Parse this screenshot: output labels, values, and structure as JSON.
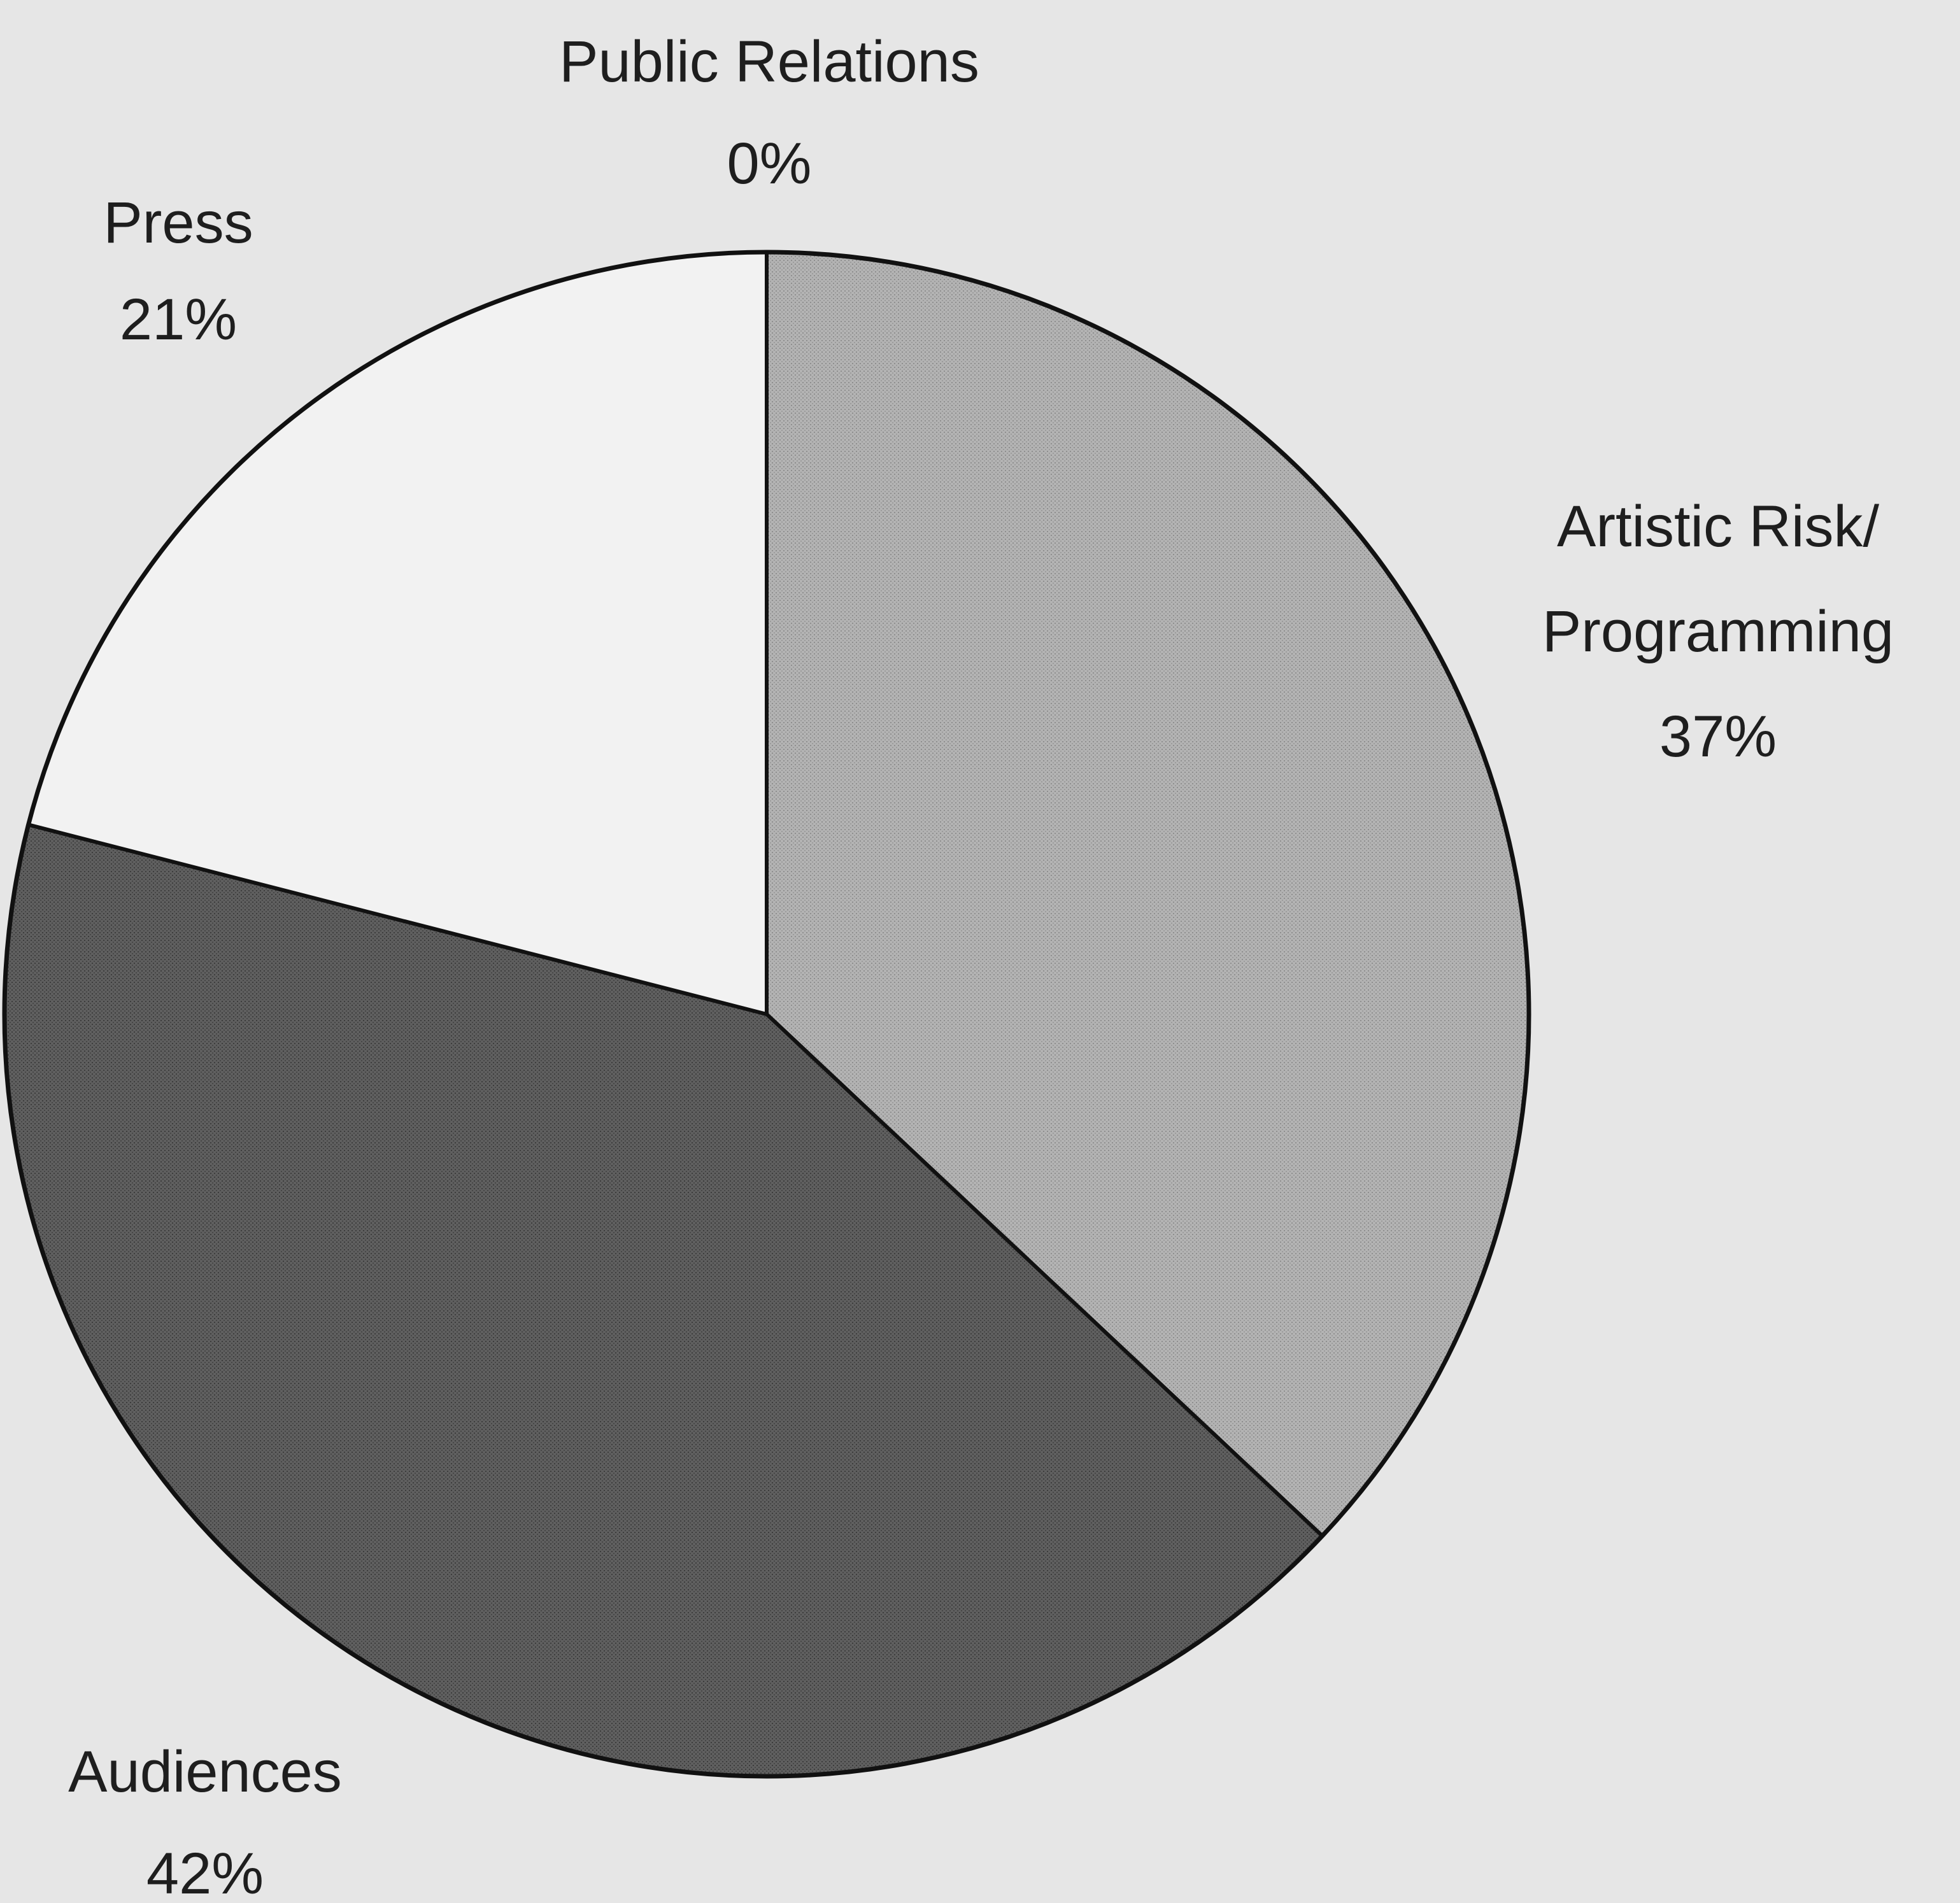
{
  "chart_data": {
    "type": "pie",
    "slices": [
      {
        "label_lines": [
          "Public Relations",
          "0%"
        ],
        "value": 0,
        "color": "#ffffff",
        "pattern": "none"
      },
      {
        "label_lines": [
          "Artistic Risk/",
          "Programming",
          "37%"
        ],
        "value": 37,
        "color": "#b2b2b2",
        "pattern": "fine-dots"
      },
      {
        "label_lines": [
          "Audiences",
          "42%"
        ],
        "value": 42,
        "color": "#5e5e5e",
        "pattern": "fine-dots"
      },
      {
        "label_lines": [
          "Press",
          "21%"
        ],
        "value": 21,
        "color": "#f2f2f2",
        "pattern": "none"
      }
    ],
    "start_angle": "12 o'clock",
    "direction": "clockwise",
    "background_color": "#e6e6e6",
    "outline_color": "#111111",
    "legend": "none",
    "labels": "outside slices"
  }
}
